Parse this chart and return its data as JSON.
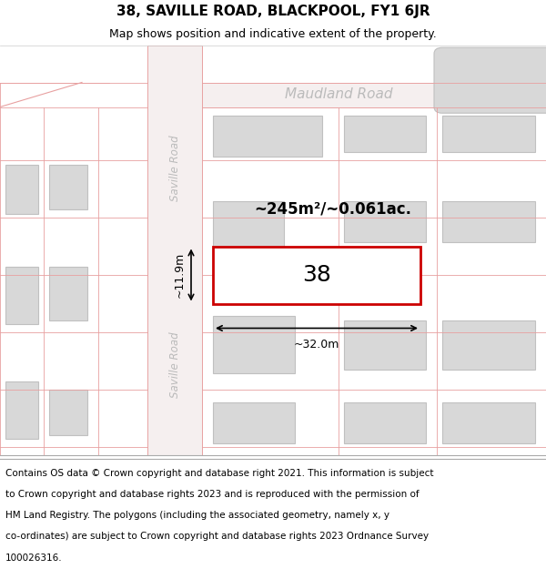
{
  "title": "38, SAVILLE ROAD, BLACKPOOL, FY1 6JR",
  "subtitle": "Map shows position and indicative extent of the property.",
  "footnote_lines": [
    "Contains OS data © Crown copyright and database right 2021. This information is subject",
    "to Crown copyright and database rights 2023 and is reproduced with the permission of",
    "HM Land Registry. The polygons (including the associated geometry, namely x, y",
    "co-ordinates) are subject to Crown copyright and database rights 2023 Ordnance Survey",
    "100026316."
  ],
  "map_bg": "#ffffff",
  "road_fill": "#f5efef",
  "road_outline": "#e8a0a0",
  "building_fill": "#d8d8d8",
  "building_outline": "#c0c0c0",
  "subject_fill": "#ffffff",
  "subject_outline": "#cc0000",
  "road_label_color": "#bbbbbb",
  "area_label": "~245m²/~0.061ac.",
  "width_label": "~32.0m",
  "height_label": "~11.9m",
  "subject_label": "38",
  "road1_label": "Maudland Road",
  "road2_label": "Saville Road",
  "road3_label": "Saville Road",
  "title_fontsize": 11,
  "subtitle_fontsize": 9,
  "footnote_fontsize": 7.5
}
